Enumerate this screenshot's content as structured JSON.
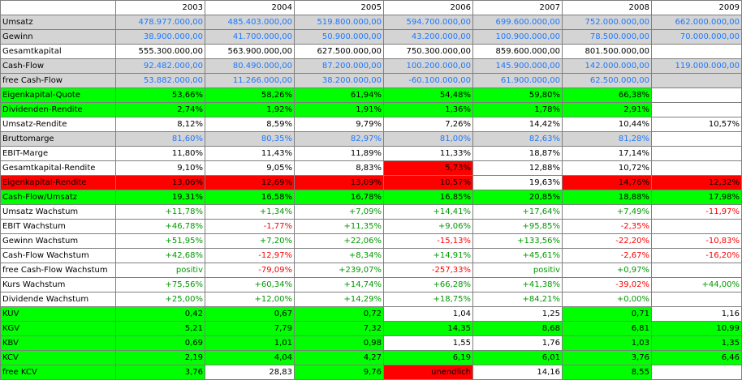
{
  "years": [
    "2003",
    "2004",
    "2005",
    "2006",
    "2007",
    "2008",
    "2009"
  ],
  "rows": [
    {
      "label": "Umsatz",
      "lbg": "gray",
      "cells": [
        [
          "478.977.000,00",
          "gray",
          "blue"
        ],
        [
          "485.403.000,00",
          "gray",
          "blue"
        ],
        [
          "519.800.000,00",
          "gray",
          "blue"
        ],
        [
          "594.700.000,00",
          "gray",
          "blue"
        ],
        [
          "699.600.000,00",
          "gray",
          "blue"
        ],
        [
          "752.000.000,00",
          "gray",
          "blue"
        ],
        [
          "662.000.000,00",
          "gray",
          "blue"
        ]
      ]
    },
    {
      "label": "Gewinn",
      "lbg": "gray",
      "cells": [
        [
          "38.900.000,00",
          "gray",
          "blue"
        ],
        [
          "41.700.000,00",
          "gray",
          "blue"
        ],
        [
          "50.900.000,00",
          "gray",
          "blue"
        ],
        [
          "43.200.000,00",
          "gray",
          "blue"
        ],
        [
          "100.900.000,00",
          "gray",
          "blue"
        ],
        [
          "78.500.000,00",
          "gray",
          "blue"
        ],
        [
          "70.000.000,00",
          "gray",
          "blue"
        ]
      ]
    },
    {
      "label": "Gesamtkapital",
      "lbg": "white",
      "cells": [
        [
          "555.300.000,00",
          "white",
          ""
        ],
        [
          "563.900.000,00",
          "white",
          ""
        ],
        [
          "627.500.000,00",
          "white",
          ""
        ],
        [
          "750.300.000,00",
          "white",
          ""
        ],
        [
          "859.600.000,00",
          "white",
          ""
        ],
        [
          "801.500.000,00",
          "white",
          ""
        ],
        [
          "",
          "white",
          ""
        ]
      ]
    },
    {
      "label": "Cash-Flow",
      "lbg": "gray",
      "cells": [
        [
          "92.482.000,00",
          "gray",
          "blue"
        ],
        [
          "80.490.000,00",
          "gray",
          "blue"
        ],
        [
          "87.200.000,00",
          "gray",
          "blue"
        ],
        [
          "100.200.000,00",
          "gray",
          "blue"
        ],
        [
          "145.900.000,00",
          "gray",
          "blue"
        ],
        [
          "142.000.000,00",
          "gray",
          "blue"
        ],
        [
          "119.000.000,00",
          "gray",
          "blue"
        ]
      ]
    },
    {
      "label": "free Cash-Flow",
      "lbg": "gray",
      "cells": [
        [
          "53.882.000,00",
          "gray",
          "blue"
        ],
        [
          "11.266.000,00",
          "gray",
          "blue"
        ],
        [
          "38.200.000,00",
          "gray",
          "blue"
        ],
        [
          "-60.100.000,00",
          "gray",
          "blue"
        ],
        [
          "61.900.000,00",
          "gray",
          "blue"
        ],
        [
          "62.500.000,00",
          "gray",
          "blue"
        ],
        [
          "",
          "gray",
          ""
        ]
      ]
    },
    {
      "label": "Eigenkapital-Quote",
      "lbg": "green",
      "cells": [
        [
          "53,66%",
          "green",
          ""
        ],
        [
          "58,26%",
          "green",
          ""
        ],
        [
          "61,94%",
          "green",
          ""
        ],
        [
          "54,48%",
          "green",
          ""
        ],
        [
          "59,80%",
          "green",
          ""
        ],
        [
          "66,38%",
          "green",
          ""
        ],
        [
          "",
          "white",
          ""
        ]
      ]
    },
    {
      "label": "Dividenden-Rendite",
      "lbg": "green",
      "cells": [
        [
          "2,74%",
          "green",
          ""
        ],
        [
          "1,92%",
          "green",
          ""
        ],
        [
          "1,91%",
          "green",
          ""
        ],
        [
          "1,36%",
          "green",
          ""
        ],
        [
          "1,78%",
          "green",
          ""
        ],
        [
          "2,91%",
          "green",
          ""
        ],
        [
          "",
          "white",
          ""
        ]
      ]
    },
    {
      "label": "Umsatz-Rendite",
      "lbg": "white",
      "cells": [
        [
          "8,12%",
          "white",
          ""
        ],
        [
          "8,59%",
          "white",
          ""
        ],
        [
          "9,79%",
          "white",
          ""
        ],
        [
          "7,26%",
          "white",
          ""
        ],
        [
          "14,42%",
          "white",
          ""
        ],
        [
          "10,44%",
          "white",
          ""
        ],
        [
          "10,57%",
          "white",
          ""
        ]
      ]
    },
    {
      "label": "Bruttomarge",
      "lbg": "gray",
      "cells": [
        [
          "81,60%",
          "gray",
          "blue"
        ],
        [
          "80,35%",
          "gray",
          "blue"
        ],
        [
          "82,97%",
          "gray",
          "blue"
        ],
        [
          "81,00%",
          "gray",
          "blue"
        ],
        [
          "82,63%",
          "gray",
          "blue"
        ],
        [
          "81,28%",
          "gray",
          "blue"
        ],
        [
          "",
          "white",
          ""
        ]
      ]
    },
    {
      "label": "EBIT-Marge",
      "lbg": "white",
      "cells": [
        [
          "11,80%",
          "white",
          ""
        ],
        [
          "11,43%",
          "white",
          ""
        ],
        [
          "11,89%",
          "white",
          ""
        ],
        [
          "11,33%",
          "white",
          ""
        ],
        [
          "18,87%",
          "white",
          ""
        ],
        [
          "17,14%",
          "white",
          ""
        ],
        [
          "",
          "white",
          ""
        ]
      ]
    },
    {
      "label": "Gesamtkapital-Rendite",
      "lbg": "white",
      "cells": [
        [
          "9,10%",
          "white",
          ""
        ],
        [
          "9,05%",
          "white",
          ""
        ],
        [
          "8,83%",
          "white",
          ""
        ],
        [
          "5,73%",
          "red",
          ""
        ],
        [
          "12,88%",
          "white",
          ""
        ],
        [
          "10,72%",
          "white",
          ""
        ],
        [
          "",
          "white",
          ""
        ]
      ]
    },
    {
      "label": "Eigenkapital-Rendite",
      "lbg": "red",
      "cells": [
        [
          "13,06%",
          "red",
          ""
        ],
        [
          "12,69%",
          "red",
          ""
        ],
        [
          "13,09%",
          "red",
          ""
        ],
        [
          "10,57%",
          "red",
          ""
        ],
        [
          "19,63%",
          "white",
          ""
        ],
        [
          "14,76%",
          "red",
          ""
        ],
        [
          "12,32%",
          "red",
          ""
        ]
      ]
    },
    {
      "label": "Cash-Flow/Umsatz",
      "lbg": "green",
      "cells": [
        [
          "19,31%",
          "green",
          ""
        ],
        [
          "16,58%",
          "green",
          ""
        ],
        [
          "16,78%",
          "green",
          ""
        ],
        [
          "16,85%",
          "green",
          ""
        ],
        [
          "20,85%",
          "green",
          ""
        ],
        [
          "18,88%",
          "green",
          ""
        ],
        [
          "17,98%",
          "green",
          ""
        ]
      ]
    },
    {
      "label": "Umsatz Wachstum",
      "lbg": "white",
      "cells": [
        [
          "+11,78%",
          "white",
          "greentxt"
        ],
        [
          "+1,34%",
          "white",
          "greentxt"
        ],
        [
          "+7,09%",
          "white",
          "greentxt"
        ],
        [
          "+14,41%",
          "white",
          "greentxt"
        ],
        [
          "+17,64%",
          "white",
          "greentxt"
        ],
        [
          "+7,49%",
          "white",
          "greentxt"
        ],
        [
          "-11,97%",
          "white",
          "redtxt"
        ]
      ]
    },
    {
      "label": "EBIT Wachstum",
      "lbg": "white",
      "cells": [
        [
          "+46,78%",
          "white",
          "greentxt"
        ],
        [
          "-1,77%",
          "white",
          "redtxt"
        ],
        [
          "+11,35%",
          "white",
          "greentxt"
        ],
        [
          "+9,06%",
          "white",
          "greentxt"
        ],
        [
          "+95,85%",
          "white",
          "greentxt"
        ],
        [
          "-2,35%",
          "white",
          "redtxt"
        ],
        [
          "",
          "white",
          ""
        ]
      ]
    },
    {
      "label": "Gewinn Wachstum",
      "lbg": "white",
      "cells": [
        [
          "+51,95%",
          "white",
          "greentxt"
        ],
        [
          "+7,20%",
          "white",
          "greentxt"
        ],
        [
          "+22,06%",
          "white",
          "greentxt"
        ],
        [
          "-15,13%",
          "white",
          "redtxt"
        ],
        [
          "+133,56%",
          "white",
          "greentxt"
        ],
        [
          "-22,20%",
          "white",
          "redtxt"
        ],
        [
          "-10,83%",
          "white",
          "redtxt"
        ]
      ]
    },
    {
      "label": "Cash-Flow Wachstum",
      "lbg": "white",
      "cells": [
        [
          "+42,68%",
          "white",
          "greentxt"
        ],
        [
          "-12,97%",
          "white",
          "redtxt"
        ],
        [
          "+8,34%",
          "white",
          "greentxt"
        ],
        [
          "+14,91%",
          "white",
          "greentxt"
        ],
        [
          "+45,61%",
          "white",
          "greentxt"
        ],
        [
          "-2,67%",
          "white",
          "redtxt"
        ],
        [
          "-16,20%",
          "white",
          "redtxt"
        ]
      ]
    },
    {
      "label": "free Cash-Flow Wachstum",
      "lbg": "white",
      "cells": [
        [
          "positiv",
          "white",
          "greentxt"
        ],
        [
          "-79,09%",
          "white",
          "redtxt"
        ],
        [
          "+239,07%",
          "white",
          "greentxt"
        ],
        [
          "-257,33%",
          "white",
          "redtxt"
        ],
        [
          "positiv",
          "white",
          "greentxt"
        ],
        [
          "+0,97%",
          "white",
          "greentxt"
        ],
        [
          "",
          "white",
          ""
        ]
      ]
    },
    {
      "label": "Kurs Wachstum",
      "lbg": "white",
      "cells": [
        [
          "+75,56%",
          "white",
          "greentxt"
        ],
        [
          "+60,34%",
          "white",
          "greentxt"
        ],
        [
          "+14,74%",
          "white",
          "greentxt"
        ],
        [
          "+66,28%",
          "white",
          "greentxt"
        ],
        [
          "+41,38%",
          "white",
          "greentxt"
        ],
        [
          "-39,02%",
          "white",
          "redtxt"
        ],
        [
          "+44,00%",
          "white",
          "greentxt"
        ]
      ]
    },
    {
      "label": "Dividende Wachstum",
      "lbg": "white",
      "cells": [
        [
          "+25,00%",
          "white",
          "greentxt"
        ],
        [
          "+12,00%",
          "white",
          "greentxt"
        ],
        [
          "+14,29%",
          "white",
          "greentxt"
        ],
        [
          "+18,75%",
          "white",
          "greentxt"
        ],
        [
          "+84,21%",
          "white",
          "greentxt"
        ],
        [
          "+0,00%",
          "white",
          "greentxt"
        ],
        [
          "",
          "white",
          ""
        ]
      ]
    },
    {
      "label": "KUV",
      "lbg": "green",
      "cells": [
        [
          "0,42",
          "green",
          ""
        ],
        [
          "0,67",
          "green",
          ""
        ],
        [
          "0,72",
          "green",
          ""
        ],
        [
          "1,04",
          "white",
          ""
        ],
        [
          "1,25",
          "white",
          ""
        ],
        [
          "0,71",
          "green",
          ""
        ],
        [
          "1,16",
          "white",
          ""
        ]
      ]
    },
    {
      "label": "KGV",
      "lbg": "green",
      "cells": [
        [
          "5,21",
          "green",
          ""
        ],
        [
          "7,79",
          "green",
          ""
        ],
        [
          "7,32",
          "green",
          ""
        ],
        [
          "14,35",
          "green",
          ""
        ],
        [
          "8,68",
          "green",
          ""
        ],
        [
          "6,81",
          "green",
          ""
        ],
        [
          "10,99",
          "green",
          ""
        ]
      ]
    },
    {
      "label": "KBV",
      "lbg": "green",
      "cells": [
        [
          "0,69",
          "green",
          ""
        ],
        [
          "1,01",
          "green",
          ""
        ],
        [
          "0,98",
          "green",
          ""
        ],
        [
          "1,55",
          "white",
          ""
        ],
        [
          "1,76",
          "white",
          ""
        ],
        [
          "1,03",
          "green",
          ""
        ],
        [
          "1,35",
          "green",
          ""
        ]
      ]
    },
    {
      "label": "KCV",
      "lbg": "green",
      "cells": [
        [
          "2,19",
          "green",
          ""
        ],
        [
          "4,04",
          "green",
          ""
        ],
        [
          "4,27",
          "green",
          ""
        ],
        [
          "6,19",
          "green",
          ""
        ],
        [
          "6,01",
          "green",
          ""
        ],
        [
          "3,76",
          "green",
          ""
        ],
        [
          "6,46",
          "green",
          ""
        ]
      ]
    },
    {
      "label": "free KCV",
      "lbg": "green",
      "cells": [
        [
          "3,76",
          "green",
          ""
        ],
        [
          "28,83",
          "white",
          ""
        ],
        [
          "9,76",
          "green",
          ""
        ],
        [
          "unendlich",
          "red",
          ""
        ],
        [
          "14,16",
          "white",
          ""
        ],
        [
          "8,55",
          "green",
          ""
        ],
        [
          "",
          "white",
          ""
        ]
      ]
    }
  ]
}
